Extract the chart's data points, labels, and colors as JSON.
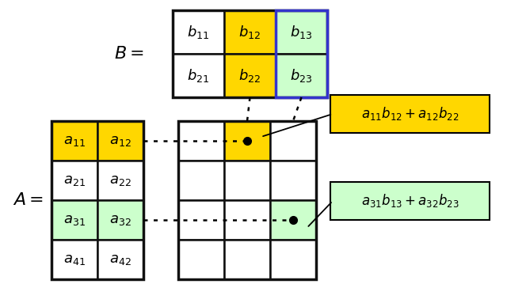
{
  "yellow": "#FFD700",
  "light_green": "#CCFFCC",
  "white": "#FFFFFF",
  "border_color": "#111111",
  "text_color": "#000000",
  "B_label": "$B=$",
  "A_label": "$A=$",
  "b_entries": [
    [
      "b_{11}",
      "b_{12}",
      "b_{13}"
    ],
    [
      "b_{21}",
      "b_{22}",
      "b_{23}"
    ]
  ],
  "a_entries": [
    [
      "a_{11}",
      "a_{12}"
    ],
    [
      "a_{21}",
      "a_{22}"
    ],
    [
      "a_{31}",
      "a_{32}"
    ],
    [
      "a_{41}",
      "a_{42}"
    ]
  ],
  "formula1": "$a_{11}b_{12} + a_{12}b_{22}$",
  "formula2": "$a_{31}b_{13} + a_{32}b_{23}$",
  "figsize": [
    6.4,
    3.83
  ],
  "dpi": 100
}
